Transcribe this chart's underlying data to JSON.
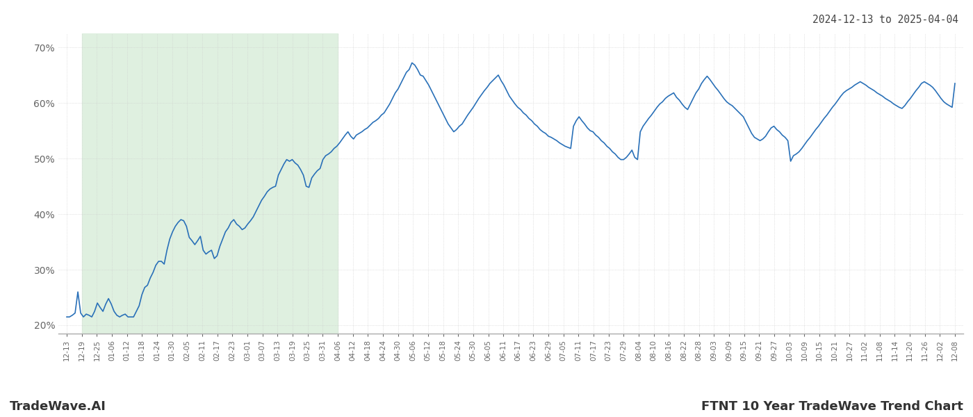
{
  "title_top_right": "2024-12-13 to 2025-04-04",
  "title_bottom_left": "TradeWave.AI",
  "title_bottom_right": "FTNT 10 Year TradeWave Trend Chart",
  "ylim": [
    0.185,
    0.725
  ],
  "yticks": [
    0.2,
    0.3,
    0.4,
    0.5,
    0.6,
    0.7
  ],
  "line_color": "#2970b8",
  "shade_color": "#dff0e0",
  "grid_color": "#cccccc",
  "background_color": "#ffffff",
  "x_labels": [
    "12-13",
    "12-19",
    "12-25",
    "01-06",
    "01-12",
    "01-18",
    "01-24",
    "01-30",
    "02-05",
    "02-11",
    "02-17",
    "02-23",
    "03-01",
    "03-07",
    "03-13",
    "03-19",
    "03-25",
    "03-31",
    "04-06",
    "04-12",
    "04-18",
    "04-24",
    "04-30",
    "05-06",
    "05-12",
    "05-18",
    "05-24",
    "05-30",
    "06-05",
    "06-11",
    "06-17",
    "06-23",
    "06-29",
    "07-05",
    "07-11",
    "07-17",
    "07-23",
    "07-29",
    "08-04",
    "08-10",
    "08-16",
    "08-22",
    "08-28",
    "09-03",
    "09-09",
    "09-15",
    "09-21",
    "09-27",
    "10-03",
    "10-09",
    "10-15",
    "10-21",
    "10-27",
    "11-02",
    "11-08",
    "11-14",
    "11-20",
    "11-26",
    "12-02",
    "12-08"
  ],
  "y_values": [
    0.215,
    0.215,
    0.218,
    0.222,
    0.26,
    0.222,
    0.215,
    0.22,
    0.218,
    0.215,
    0.225,
    0.24,
    0.232,
    0.225,
    0.238,
    0.248,
    0.238,
    0.225,
    0.218,
    0.215,
    0.218,
    0.22,
    0.215,
    0.215,
    0.215,
    0.225,
    0.235,
    0.255,
    0.268,
    0.272,
    0.285,
    0.295,
    0.308,
    0.315,
    0.315,
    0.31,
    0.335,
    0.355,
    0.368,
    0.378,
    0.385,
    0.39,
    0.388,
    0.378,
    0.358,
    0.352,
    0.345,
    0.352,
    0.36,
    0.335,
    0.328,
    0.332,
    0.335,
    0.32,
    0.325,
    0.342,
    0.355,
    0.368,
    0.375,
    0.385,
    0.39,
    0.382,
    0.378,
    0.372,
    0.375,
    0.382,
    0.388,
    0.395,
    0.405,
    0.415,
    0.425,
    0.432,
    0.44,
    0.445,
    0.448,
    0.45,
    0.47,
    0.48,
    0.49,
    0.498,
    0.495,
    0.498,
    0.492,
    0.488,
    0.48,
    0.47,
    0.45,
    0.448,
    0.465,
    0.472,
    0.478,
    0.482,
    0.498,
    0.505,
    0.508,
    0.512,
    0.518,
    0.522,
    0.528,
    0.535,
    0.542,
    0.548,
    0.54,
    0.535,
    0.542,
    0.545,
    0.548,
    0.552,
    0.555,
    0.56,
    0.565,
    0.568,
    0.572,
    0.578,
    0.582,
    0.59,
    0.598,
    0.608,
    0.618,
    0.625,
    0.635,
    0.645,
    0.655,
    0.66,
    0.672,
    0.668,
    0.66,
    0.65,
    0.648,
    0.64,
    0.632,
    0.622,
    0.612,
    0.602,
    0.592,
    0.582,
    0.572,
    0.562,
    0.555,
    0.548,
    0.552,
    0.558,
    0.562,
    0.57,
    0.578,
    0.585,
    0.592,
    0.6,
    0.608,
    0.615,
    0.622,
    0.628,
    0.635,
    0.64,
    0.645,
    0.65,
    0.64,
    0.632,
    0.622,
    0.612,
    0.605,
    0.598,
    0.592,
    0.588,
    0.582,
    0.578,
    0.572,
    0.568,
    0.562,
    0.558,
    0.552,
    0.548,
    0.545,
    0.54,
    0.538,
    0.535,
    0.532,
    0.528,
    0.525,
    0.522,
    0.52,
    0.518,
    0.558,
    0.568,
    0.575,
    0.568,
    0.562,
    0.555,
    0.55,
    0.548,
    0.542,
    0.538,
    0.532,
    0.528,
    0.522,
    0.518,
    0.512,
    0.508,
    0.502,
    0.498,
    0.498,
    0.502,
    0.508,
    0.515,
    0.502,
    0.498,
    0.548,
    0.558,
    0.565,
    0.572,
    0.578,
    0.585,
    0.592,
    0.598,
    0.602,
    0.608,
    0.612,
    0.615,
    0.618,
    0.61,
    0.605,
    0.598,
    0.592,
    0.588,
    0.598,
    0.608,
    0.618,
    0.625,
    0.635,
    0.642,
    0.648,
    0.642,
    0.635,
    0.628,
    0.622,
    0.615,
    0.608,
    0.602,
    0.598,
    0.595,
    0.59,
    0.585,
    0.58,
    0.575,
    0.565,
    0.555,
    0.545,
    0.538,
    0.535,
    0.532,
    0.535,
    0.54,
    0.548,
    0.555,
    0.558,
    0.552,
    0.548,
    0.542,
    0.538,
    0.532,
    0.495,
    0.505,
    0.508,
    0.512,
    0.518,
    0.525,
    0.532,
    0.538,
    0.545,
    0.552,
    0.558,
    0.565,
    0.572,
    0.578,
    0.585,
    0.592,
    0.598,
    0.605,
    0.612,
    0.618,
    0.622,
    0.625,
    0.628,
    0.632,
    0.635,
    0.638,
    0.635,
    0.632,
    0.628,
    0.625,
    0.622,
    0.618,
    0.615,
    0.612,
    0.608,
    0.605,
    0.602,
    0.598,
    0.595,
    0.592,
    0.59,
    0.595,
    0.602,
    0.608,
    0.615,
    0.622,
    0.628,
    0.635,
    0.638,
    0.635,
    0.632,
    0.628,
    0.622,
    0.615,
    0.608,
    0.602,
    0.598,
    0.595,
    0.592,
    0.635
  ]
}
